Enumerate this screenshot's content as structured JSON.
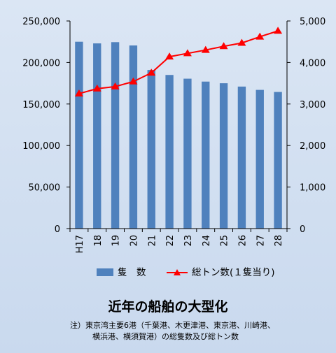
{
  "chart_data": {
    "type": "bar",
    "categories": [
      "H17",
      "18",
      "19",
      "20",
      "21",
      "22",
      "23",
      "24",
      "25",
      "26",
      "27",
      "28"
    ],
    "series": [
      {
        "name": "隻　数",
        "kind": "bar",
        "axis": "left",
        "color": "#4f81bd",
        "values": [
          225000,
          223000,
          224500,
          220500,
          191000,
          185000,
          180500,
          177000,
          175000,
          171000,
          167000,
          164500
        ]
      },
      {
        "name": "総トン数(１隻当り)",
        "kind": "line",
        "axis": "right",
        "color": "#ff0000",
        "marker": "triangle",
        "values": [
          3250,
          3370,
          3420,
          3540,
          3750,
          4140,
          4220,
          4300,
          4390,
          4470,
          4620,
          4760
        ]
      }
    ],
    "ylim_left": [
      0,
      250000
    ],
    "yticks_left": [
      "0",
      "50,000",
      "100,000",
      "150,000",
      "200,000",
      "250,000"
    ],
    "ylim_right": [
      0,
      5000
    ],
    "yticks_right": [
      "0",
      "1,000",
      "2,000",
      "3,000",
      "4,000",
      "5,000"
    ],
    "grid": false,
    "legend_position": "bottom"
  },
  "title": "近年の船舶の大型化",
  "note_lines": [
    "注）東京湾主要6港（千葉港、木更津港、東京港、川崎港、",
    "横浜港、横須賀港）の総隻数及び総トン数"
  ]
}
